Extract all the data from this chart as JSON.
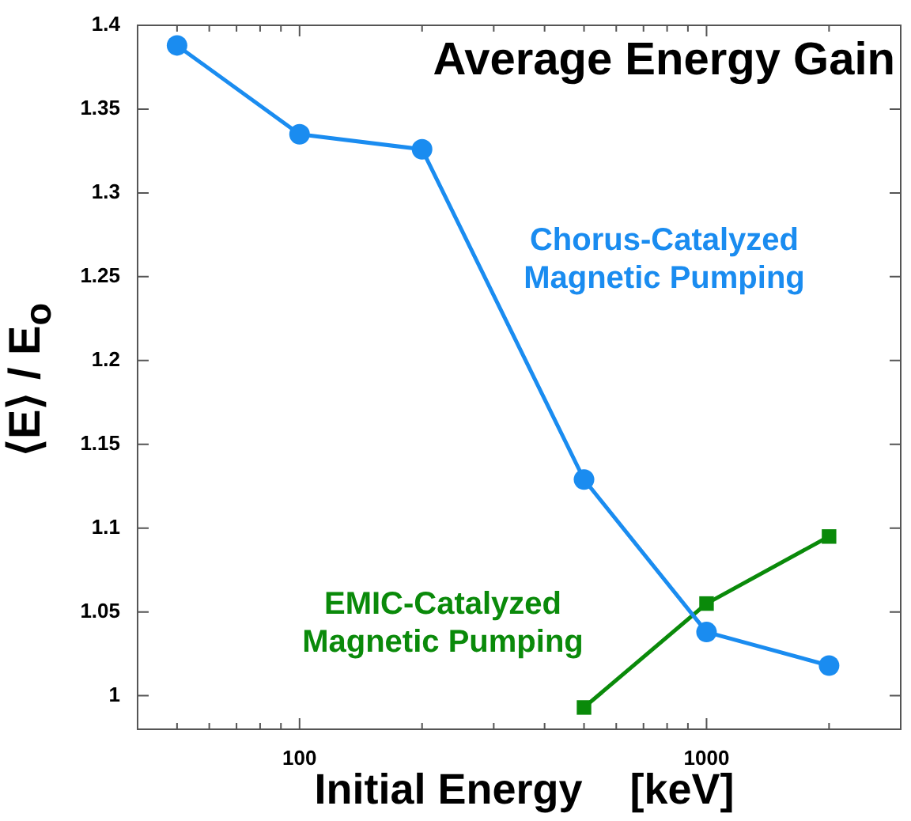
{
  "chart_data": {
    "type": "line",
    "title": "Average Energy Gain",
    "xlabel": "Initial Energy    [keV]",
    "ylabel": "⟨E⟩ / E$_{o}$",
    "log": "x",
    "grid": false,
    "legend": false,
    "xlim": [
      40,
      3000
    ],
    "ylim": [
      0.98,
      1.4
    ],
    "xticks": [
      {
        "value": 40,
        "label": null
      },
      {
        "value": 50,
        "label": null
      },
      {
        "value": 60,
        "label": null
      },
      {
        "value": 70,
        "label": null
      },
      {
        "value": 80,
        "label": null
      },
      {
        "value": 90,
        "label": null
      },
      100,
      {
        "value": 200,
        "label": null
      },
      {
        "value": 300,
        "label": null
      },
      {
        "value": 400,
        "label": null
      },
      {
        "value": 500,
        "label": null
      },
      {
        "value": 600,
        "label": null
      },
      {
        "value": 700,
        "label": null
      },
      {
        "value": 800,
        "label": null
      },
      {
        "value": 900,
        "label": null
      },
      1000,
      {
        "value": 2000,
        "label": null
      },
      {
        "value": 3000,
        "label": null
      }
    ],
    "yticks": [
      1,
      1.05,
      1.1,
      1.15,
      1.2,
      1.25,
      1.3,
      1.35,
      1.4
    ],
    "series": [
      {
        "name": "Chorus-Catalyzed Magnetic Pumping",
        "color": "#1a8cf0",
        "marker": "circle",
        "x": [
          50,
          100,
          200,
          500,
          1000,
          2000
        ],
        "values": [
          1.388,
          1.335,
          1.326,
          1.129,
          1.038,
          1.018
        ]
      },
      {
        "name": "EMIC-Catalyzed Magnetic Pumping",
        "color": "#0a8a0a",
        "marker": "square",
        "x": [
          500,
          1000,
          2000
        ],
        "values": [
          0.993,
          1.055,
          1.095
        ]
      }
    ]
  }
}
